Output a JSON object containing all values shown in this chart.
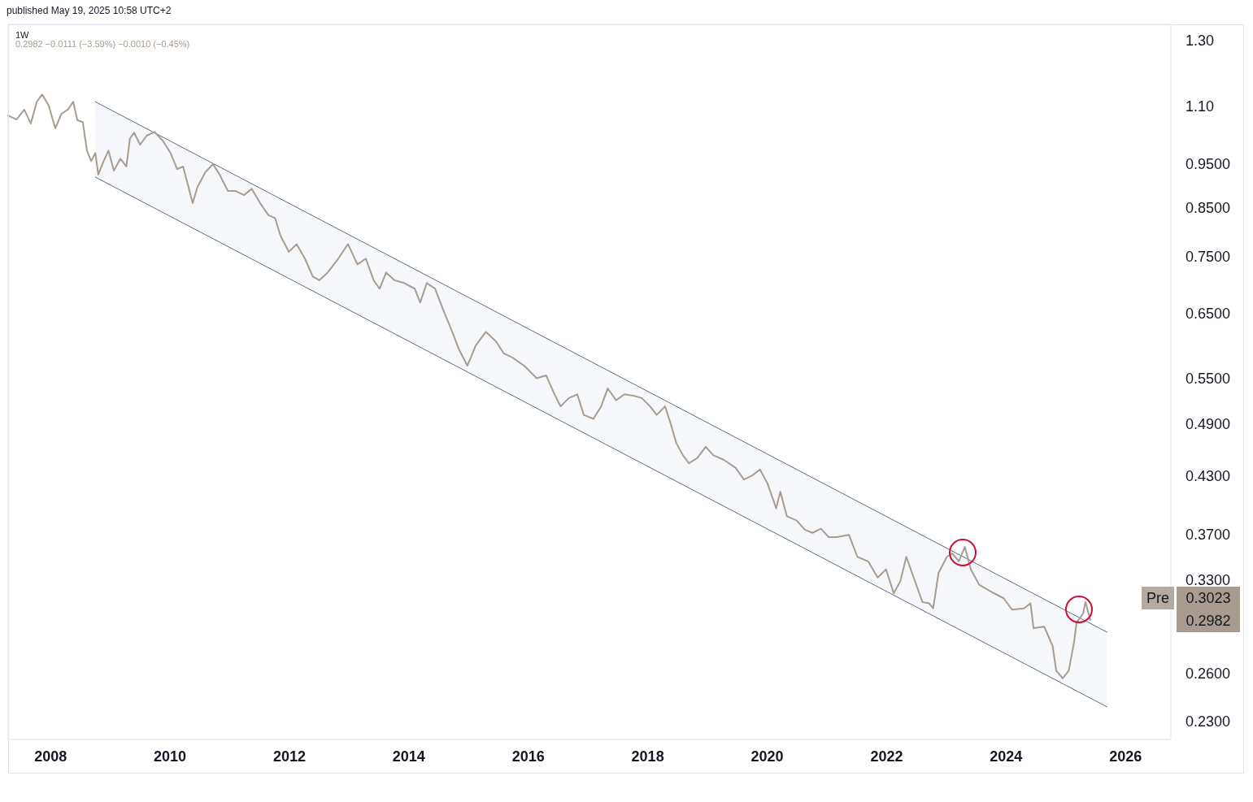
{
  "chart_data": {
    "type": "line",
    "title": "1W",
    "subtitle": "0.2982 −0.0111 (−3.59%) −0.0010 (−0.45%)",
    "annotations": [
      "published May 19, 2025 10:58 UTC+2",
      "Pre",
      "0.3023",
      "0.2982"
    ],
    "log": "y",
    "xlim": [
      2007.29,
      2026.76
    ],
    "xticks": [
      2008,
      2010,
      2012,
      2014,
      2016,
      2018,
      2020,
      2022,
      2024,
      2026
    ],
    "ylim": [
      0.22,
      1.355
    ],
    "yticks": [
      {
        "value": 0.23,
        "label": "0.2300"
      },
      {
        "value": 0.26,
        "label": "0.2600"
      },
      {
        "value": 0.33,
        "label": "0.3300"
      },
      {
        "value": 0.37,
        "label": "0.3700"
      },
      {
        "value": 0.43,
        "label": "0.4300"
      },
      {
        "value": 0.49,
        "label": "0.4900"
      },
      {
        "value": 0.55,
        "label": "0.5500"
      },
      {
        "value": 0.65,
        "label": "0.6500"
      },
      {
        "value": 0.75,
        "label": "0.7500"
      },
      {
        "value": 0.85,
        "label": "0.8500"
      },
      {
        "value": 0.95,
        "label": "0.9500"
      },
      {
        "value": 1.1,
        "label": "1.10"
      },
      {
        "value": 1.3,
        "label": "1.30"
      }
    ],
    "series": [
      {
        "color": "#5d6d80",
        "x": [
          2008.75,
          2025.69
        ],
        "values": [
          1.113,
          0.289
        ],
        "lower": [
          0.919,
          0.239
        ],
        "upper": [
          1.113,
          0.289
        ]
      },
      {
        "color": "#5d6d80",
        "x": [
          2008.75,
          2025.69
        ],
        "values": [
          0.919,
          0.239
        ]
      },
      {
        "color": "#a89c90",
        "x": [
          2007.29,
          2007.43,
          2007.56,
          2007.67,
          2007.77,
          2007.86,
          2007.97,
          2008.08,
          2008.18,
          2008.29,
          2008.38,
          2008.45,
          2008.54,
          2008.61,
          2008.68,
          2008.75,
          2008.8,
          2008.88,
          2008.97,
          2009.06,
          2009.17,
          2009.27,
          2009.33,
          2009.4,
          2009.5,
          2009.61,
          2009.74,
          2009.88,
          2010.01,
          2010.12,
          2010.22,
          2010.31,
          2010.38,
          2010.46,
          2010.59,
          2010.72,
          2010.83,
          2010.97,
          2011.1,
          2011.24,
          2011.37,
          2011.51,
          2011.65,
          2011.76,
          2011.85,
          2011.99,
          2012.12,
          2012.26,
          2012.39,
          2012.5,
          2012.64,
          2012.8,
          2012.98,
          2013.14,
          2013.28,
          2013.41,
          2013.51,
          2013.62,
          2013.76,
          2013.92,
          2014.1,
          2014.19,
          2014.3,
          2014.44,
          2014.57,
          2014.71,
          2014.84,
          2014.98,
          2015.12,
          2015.29,
          2015.46,
          2015.59,
          2015.73,
          2015.93,
          2016.14,
          2016.3,
          2016.44,
          2016.54,
          2016.68,
          2016.82,
          2016.93,
          2017.09,
          2017.22,
          2017.33,
          2017.47,
          2017.61,
          2017.77,
          2017.9,
          2018.04,
          2018.15,
          2018.29,
          2018.38,
          2018.48,
          2018.59,
          2018.69,
          2018.83,
          2018.97,
          2019.1,
          2019.27,
          2019.47,
          2019.61,
          2019.74,
          2019.88,
          2020.01,
          2020.15,
          2020.22,
          2020.33,
          2020.49,
          2020.63,
          2020.76,
          2020.9,
          2021.03,
          2021.17,
          2021.37,
          2021.51,
          2021.69,
          2021.85,
          2021.99,
          2022.12,
          2022.23,
          2022.33,
          2022.46,
          2022.6,
          2022.71,
          2022.78,
          2022.87,
          2023.01,
          2023.1,
          2023.21,
          2023.31,
          2023.41,
          2023.55,
          2023.76,
          2023.96,
          2024.1,
          2024.3,
          2024.41,
          2024.46,
          2024.64,
          2024.78,
          2024.84,
          2024.95,
          2025.05,
          2025.14,
          2025.18,
          2025.29,
          2025.33,
          2025.41
        ],
        "values": [
          1.075,
          1.064,
          1.091,
          1.053,
          1.113,
          1.134,
          1.102,
          1.04,
          1.079,
          1.091,
          1.113,
          1.062,
          1.057,
          0.983,
          0.957,
          0.977,
          0.925,
          0.954,
          0.983,
          0.934,
          0.963,
          0.944,
          1.014,
          1.029,
          0.998,
          1.021,
          1.031,
          1.008,
          0.977,
          0.938,
          0.944,
          0.896,
          0.86,
          0.896,
          0.93,
          0.95,
          0.925,
          0.887,
          0.887,
          0.878,
          0.892,
          0.86,
          0.834,
          0.828,
          0.792,
          0.76,
          0.775,
          0.747,
          0.714,
          0.707,
          0.721,
          0.744,
          0.775,
          0.736,
          0.747,
          0.707,
          0.692,
          0.721,
          0.707,
          0.702,
          0.692,
          0.668,
          0.702,
          0.692,
          0.657,
          0.624,
          0.593,
          0.569,
          0.599,
          0.62,
          0.605,
          0.587,
          0.581,
          0.569,
          0.551,
          0.555,
          0.529,
          0.513,
          0.524,
          0.529,
          0.502,
          0.497,
          0.513,
          0.537,
          0.521,
          0.529,
          0.527,
          0.524,
          0.513,
          0.502,
          0.513,
          0.492,
          0.467,
          0.453,
          0.444,
          0.45,
          0.463,
          0.453,
          0.448,
          0.439,
          0.426,
          0.43,
          0.437,
          0.421,
          0.396,
          0.413,
          0.388,
          0.384,
          0.375,
          0.372,
          0.376,
          0.368,
          0.368,
          0.37,
          0.35,
          0.346,
          0.332,
          0.339,
          0.319,
          0.329,
          0.35,
          0.331,
          0.312,
          0.311,
          0.307,
          0.336,
          0.35,
          0.353,
          0.346,
          0.359,
          0.339,
          0.326,
          0.32,
          0.315,
          0.306,
          0.307,
          0.311,
          0.292,
          0.293,
          0.279,
          0.262,
          0.257,
          0.262,
          0.282,
          0.296,
          0.303,
          0.312,
          0.298
        ]
      }
    ]
  }
}
